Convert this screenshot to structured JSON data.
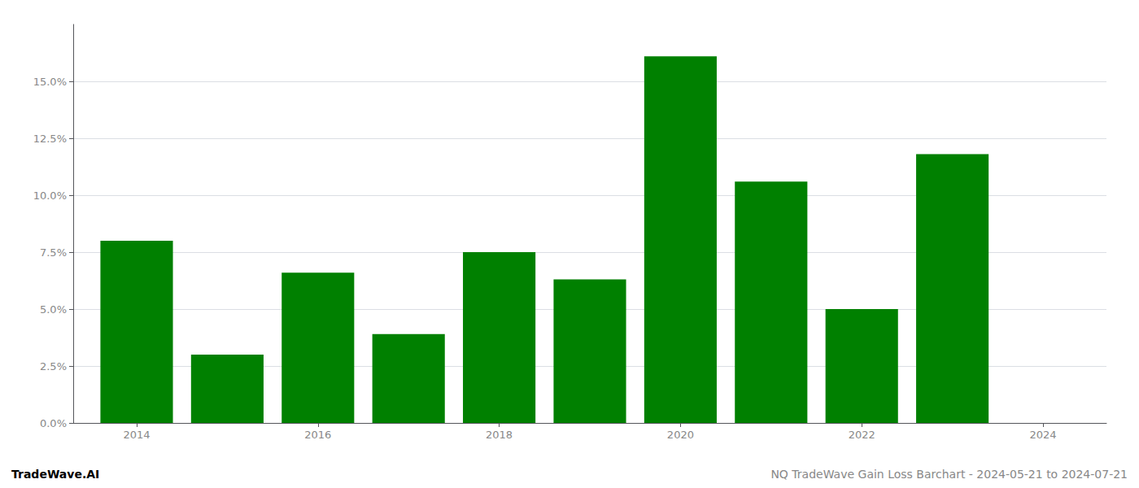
{
  "chart_data": {
    "type": "bar",
    "x": [
      2014,
      2015,
      2016,
      2017,
      2018,
      2019,
      2020,
      2021,
      2022,
      2023
    ],
    "values": [
      0.08,
      0.03,
      0.066,
      0.039,
      0.075,
      0.063,
      0.161,
      0.106,
      0.05,
      0.118
    ],
    "color": "#008000",
    "xlim": [
      2013.3,
      2024.7
    ],
    "xticks": [
      2014,
      2016,
      2018,
      2020,
      2022,
      2024
    ],
    "ylim": [
      0,
      0.175
    ],
    "yticks": [
      {
        "value": 0.0,
        "label": "0.0%"
      },
      {
        "value": 0.025,
        "label": "2.5%"
      },
      {
        "value": 0.05,
        "label": "5.0%"
      },
      {
        "value": 0.075,
        "label": "7.5%"
      },
      {
        "value": 0.1,
        "label": "10.0%"
      },
      {
        "value": 0.125,
        "label": "12.5%"
      },
      {
        "value": 0.15,
        "label": "15.0%"
      }
    ],
    "grid": true,
    "annotations": [
      "TradeWave.AI",
      "NQ TradeWave Gain Loss Barchart - 2024-05-21 to 2024-07-21"
    ]
  }
}
